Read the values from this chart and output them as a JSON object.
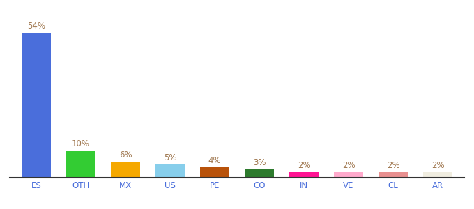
{
  "categories": [
    "ES",
    "OTH",
    "MX",
    "US",
    "PE",
    "CO",
    "IN",
    "VE",
    "CL",
    "AR"
  ],
  "values": [
    54,
    10,
    6,
    5,
    4,
    3,
    2,
    2,
    2,
    2
  ],
  "bar_colors": [
    "#4a6edb",
    "#33cc33",
    "#f5a800",
    "#87ceeb",
    "#b8520a",
    "#2d7a2d",
    "#ff1493",
    "#ffaacc",
    "#e89090",
    "#f0ede0"
  ],
  "ylim": [
    0,
    60
  ],
  "background_color": "#ffffff",
  "label_color": "#a07850",
  "label_fontsize": 8.5,
  "tick_color": "#4a6edb",
  "tick_fontsize": 8.5
}
